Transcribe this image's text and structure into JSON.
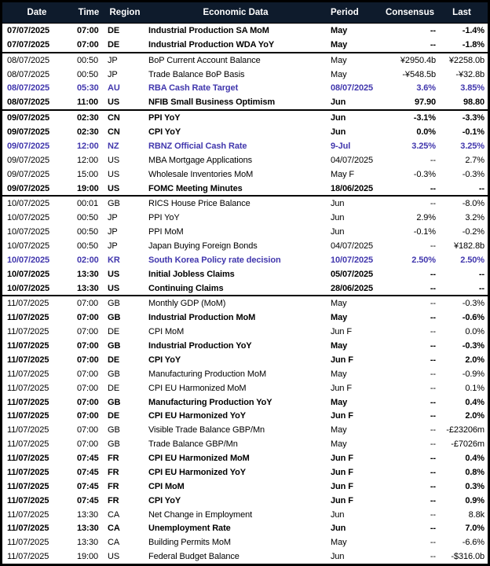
{
  "colors": {
    "header_bg": "#0e1b2c",
    "header_text": "#ffffff",
    "highlight_text": "#4137ad",
    "border": "#000000"
  },
  "header": {
    "date": "Date",
    "time": "Time",
    "region": "Region",
    "event": "Economic Data",
    "period": "Period",
    "consensus": "Consensus",
    "last": "Last"
  },
  "groups": [
    {
      "date_group": "07/07/2025",
      "rows": [
        {
          "date": "07/07/2025",
          "time": "07:00",
          "region": "DE",
          "event": "Industrial Production SA MoM",
          "period": "May",
          "consensus": "--",
          "last": "-1.4%",
          "style": "bold"
        },
        {
          "date": "07/07/2025",
          "time": "07:00",
          "region": "DE",
          "event": "Industrial Production WDA YoY",
          "period": "May",
          "consensus": "--",
          "last": "-1.8%",
          "style": "bold"
        }
      ]
    },
    {
      "date_group": "08/07/2025",
      "rows": [
        {
          "date": "08/07/2025",
          "time": "00:50",
          "region": "JP",
          "event": "BoP Current Account Balance",
          "period": "May",
          "consensus": "¥2950.4b",
          "last": "¥2258.0b",
          "style": "regular"
        },
        {
          "date": "08/07/2025",
          "time": "00:50",
          "region": "JP",
          "event": "Trade Balance BoP Basis",
          "period": "May",
          "consensus": "-¥548.5b",
          "last": "-¥32.8b",
          "style": "regular"
        },
        {
          "date": "08/07/2025",
          "time": "05:30",
          "region": "AU",
          "event": "RBA Cash Rate Target",
          "period": "08/07/2025",
          "consensus": "3.6%",
          "last": "3.85%",
          "style": "highlight"
        },
        {
          "date": "08/07/2025",
          "time": "11:00",
          "region": "US",
          "event": "NFIB Small Business Optimism",
          "period": "Jun",
          "consensus": "97.90",
          "last": "98.80",
          "style": "bold"
        }
      ]
    },
    {
      "date_group": "09/07/2025",
      "rows": [
        {
          "date": "09/07/2025",
          "time": "02:30",
          "region": "CN",
          "event": "PPI YoY",
          "period": "Jun",
          "consensus": "-3.1%",
          "last": "-3.3%",
          "style": "bold"
        },
        {
          "date": "09/07/2025",
          "time": "02:30",
          "region": "CN",
          "event": "CPI YoY",
          "period": "Jun",
          "consensus": "0.0%",
          "last": "-0.1%",
          "style": "bold"
        },
        {
          "date": "09/07/2025",
          "time": "12:00",
          "region": "NZ",
          "event": "RBNZ Official Cash Rate",
          "period": "9-Jul",
          "consensus": "3.25%",
          "last": "3.25%",
          "style": "highlight"
        },
        {
          "date": "09/07/2025",
          "time": "12:00",
          "region": "US",
          "event": "MBA Mortgage Applications",
          "period": "04/07/2025",
          "consensus": "--",
          "last": "2.7%",
          "style": "regular"
        },
        {
          "date": "09/07/2025",
          "time": "15:00",
          "region": "US",
          "event": "Wholesale Inventories MoM",
          "period": "May F",
          "consensus": "-0.3%",
          "last": "-0.3%",
          "style": "regular"
        },
        {
          "date": "09/07/2025",
          "time": "19:00",
          "region": "US",
          "event": "FOMC Meeting Minutes",
          "period": "18/06/2025",
          "consensus": "--",
          "last": "--",
          "style": "bold"
        }
      ]
    },
    {
      "date_group": "10/07/2025",
      "rows": [
        {
          "date": "10/07/2025",
          "time": "00:01",
          "region": "GB",
          "event": "RICS House Price Balance",
          "period": "Jun",
          "consensus": "--",
          "last": "-8.0%",
          "style": "regular"
        },
        {
          "date": "10/07/2025",
          "time": "00:50",
          "region": "JP",
          "event": "PPI YoY",
          "period": "Jun",
          "consensus": "2.9%",
          "last": "3.2%",
          "style": "regular"
        },
        {
          "date": "10/07/2025",
          "time": "00:50",
          "region": "JP",
          "event": "PPI MoM",
          "period": "Jun",
          "consensus": "-0.1%",
          "last": "-0.2%",
          "style": "regular"
        },
        {
          "date": "10/07/2025",
          "time": "00:50",
          "region": "JP",
          "event": "Japan Buying Foreign Bonds",
          "period": "04/07/2025",
          "consensus": "--",
          "last": "¥182.8b",
          "style": "regular"
        },
        {
          "date": "10/07/2025",
          "time": "02:00",
          "region": "KR",
          "event": "South Korea Policy rate decision",
          "period": "10/07/2025",
          "consensus": "2.50%",
          "last": "2.50%",
          "style": "highlight"
        },
        {
          "date": "10/07/2025",
          "time": "13:30",
          "region": "US",
          "event": "Initial Jobless Claims",
          "period": "05/07/2025",
          "consensus": "--",
          "last": "--",
          "style": "bold"
        },
        {
          "date": "10/07/2025",
          "time": "13:30",
          "region": "US",
          "event": "Continuing Claims",
          "period": "28/06/2025",
          "consensus": "--",
          "last": "--",
          "style": "bold"
        }
      ]
    },
    {
      "date_group": "11/07/2025",
      "rows": [
        {
          "date": "11/07/2025",
          "time": "07:00",
          "region": "GB",
          "event": "Monthly GDP (MoM)",
          "period": "May",
          "consensus": "--",
          "last": "-0.3%",
          "style": "regular"
        },
        {
          "date": "11/07/2025",
          "time": "07:00",
          "region": "GB",
          "event": "Industrial Production MoM",
          "period": "May",
          "consensus": "--",
          "last": "-0.6%",
          "style": "bold"
        },
        {
          "date": "11/07/2025",
          "time": "07:00",
          "region": "DE",
          "event": "CPI MoM",
          "period": "Jun F",
          "consensus": "--",
          "last": "0.0%",
          "style": "regular"
        },
        {
          "date": "11/07/2025",
          "time": "07:00",
          "region": "GB",
          "event": "Industrial Production YoY",
          "period": "May",
          "consensus": "--",
          "last": "-0.3%",
          "style": "bold"
        },
        {
          "date": "11/07/2025",
          "time": "07:00",
          "region": "DE",
          "event": "CPI YoY",
          "period": "Jun F",
          "consensus": "--",
          "last": "2.0%",
          "style": "bold"
        },
        {
          "date": "11/07/2025",
          "time": "07:00",
          "region": "GB",
          "event": "Manufacturing Production MoM",
          "period": "May",
          "consensus": "--",
          "last": "-0.9%",
          "style": "regular"
        },
        {
          "date": "11/07/2025",
          "time": "07:00",
          "region": "DE",
          "event": "CPI EU Harmonized MoM",
          "period": "Jun F",
          "consensus": "--",
          "last": "0.1%",
          "style": "regular"
        },
        {
          "date": "11/07/2025",
          "time": "07:00",
          "region": "GB",
          "event": "Manufacturing Production YoY",
          "period": "May",
          "consensus": "--",
          "last": "0.4%",
          "style": "bold"
        },
        {
          "date": "11/07/2025",
          "time": "07:00",
          "region": "DE",
          "event": "CPI EU Harmonized YoY",
          "period": "Jun F",
          "consensus": "--",
          "last": "2.0%",
          "style": "bold"
        },
        {
          "date": "11/07/2025",
          "time": "07:00",
          "region": "GB",
          "event": "Visible Trade Balance GBP/Mn",
          "period": "May",
          "consensus": "--",
          "last": "-£23206m",
          "style": "regular"
        },
        {
          "date": "11/07/2025",
          "time": "07:00",
          "region": "GB",
          "event": "Trade Balance GBP/Mn",
          "period": "May",
          "consensus": "--",
          "last": "-£7026m",
          "style": "regular"
        },
        {
          "date": "11/07/2025",
          "time": "07:45",
          "region": "FR",
          "event": "CPI EU Harmonized MoM",
          "period": "Jun F",
          "consensus": "--",
          "last": "0.4%",
          "style": "bold"
        },
        {
          "date": "11/07/2025",
          "time": "07:45",
          "region": "FR",
          "event": "CPI EU Harmonized YoY",
          "period": "Jun F",
          "consensus": "--",
          "last": "0.8%",
          "style": "bold"
        },
        {
          "date": "11/07/2025",
          "time": "07:45",
          "region": "FR",
          "event": "CPI MoM",
          "period": "Jun F",
          "consensus": "--",
          "last": "0.3%",
          "style": "bold"
        },
        {
          "date": "11/07/2025",
          "time": "07:45",
          "region": "FR",
          "event": "CPI YoY",
          "period": "Jun F",
          "consensus": "--",
          "last": "0.9%",
          "style": "bold"
        },
        {
          "date": "11/07/2025",
          "time": "13:30",
          "region": "CA",
          "event": "Net Change in Employment",
          "period": "Jun",
          "consensus": "--",
          "last": "8.8k",
          "style": "regular"
        },
        {
          "date": "11/07/2025",
          "time": "13:30",
          "region": "CA",
          "event": "Unemployment Rate",
          "period": "Jun",
          "consensus": "--",
          "last": "7.0%",
          "style": "bold"
        },
        {
          "date": "11/07/2025",
          "time": "13:30",
          "region": "CA",
          "event": "Building Permits MoM",
          "period": "May",
          "consensus": "--",
          "last": "-6.6%",
          "style": "regular"
        },
        {
          "date": "11/07/2025",
          "time": "19:00",
          "region": "US",
          "event": "Federal Budget Balance",
          "period": "Jun",
          "consensus": "--",
          "last": "-$316.0b",
          "style": "regular"
        }
      ]
    }
  ]
}
